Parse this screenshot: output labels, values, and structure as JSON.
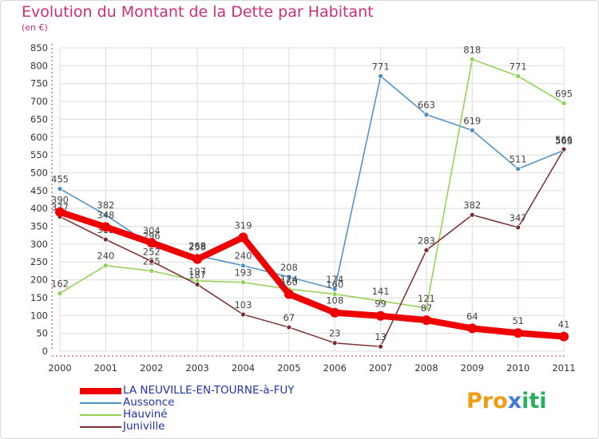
{
  "title": "Evolution du Montant de la Dette par Habitant",
  "subtitle": "(en €)",
  "logo": {
    "text": "Proxiti",
    "colors": [
      "#f39c12",
      "#f39c12",
      "#f39c12",
      "#3a7fd5",
      "#27ae60",
      "#27ae60",
      "#27ae60"
    ]
  },
  "chart_data": {
    "type": "line",
    "categories": [
      "2000",
      "2001",
      "2002",
      "2003",
      "2004",
      "2005",
      "2006",
      "2007",
      "2008",
      "2009",
      "2010",
      "2011"
    ],
    "ylim": [
      0,
      850
    ],
    "yticks": [
      0,
      50,
      100,
      150,
      200,
      250,
      300,
      350,
      400,
      450,
      500,
      550,
      600,
      650,
      700,
      750,
      800,
      850
    ],
    "grid": true,
    "legend_position": "bottom-left",
    "series": [
      {
        "name": "Aussonce",
        "color": "#4a8ec6",
        "width": 1.5,
        "marker": 3,
        "values": [
          455,
          382,
          296,
          268,
          240,
          208,
          174,
          771,
          663,
          619,
          511,
          563
        ]
      },
      {
        "name": "Hauviné",
        "color": "#8fd14f",
        "width": 1.5,
        "marker": 3,
        "values": [
          162,
          240,
          225,
          197,
          193,
          174,
          160,
          141,
          121,
          818,
          771,
          695
        ]
      },
      {
        "name": "Juniville",
        "color": "#7a2e2e",
        "width": 1.5,
        "marker": 3,
        "values": [
          377,
          313,
          252,
          187,
          103,
          67,
          23,
          13,
          283,
          382,
          347,
          566
        ]
      },
      {
        "name": "LA NEUVILLE-EN-TOURNE-à-FUY",
        "color": "#ee0000",
        "width": 8,
        "marker": 6,
        "values": [
          390,
          348,
          304,
          258,
          319,
          160,
          108,
          99,
          87,
          64,
          51,
          41
        ]
      }
    ]
  }
}
